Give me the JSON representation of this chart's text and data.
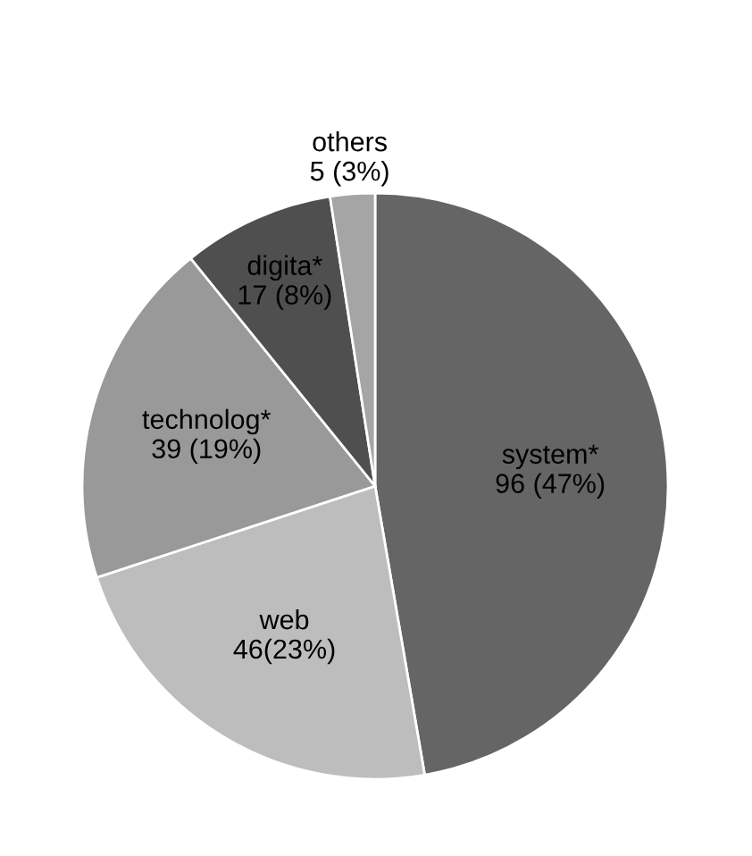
{
  "chart_data": {
    "type": "pie",
    "categories": [
      "system*",
      "web",
      "technolog*",
      "digita*",
      "others"
    ],
    "values": [
      96,
      46,
      39,
      17,
      5
    ],
    "value_labels": [
      "96 (47%)",
      "46(23%)",
      "39 (19%)",
      "17 (8%)",
      "5 (3%)"
    ],
    "colors": [
      "#656565",
      "#bdbdbd",
      "#999999",
      "#4f4f4f",
      "#a5a5a5"
    ],
    "legend": false
  }
}
